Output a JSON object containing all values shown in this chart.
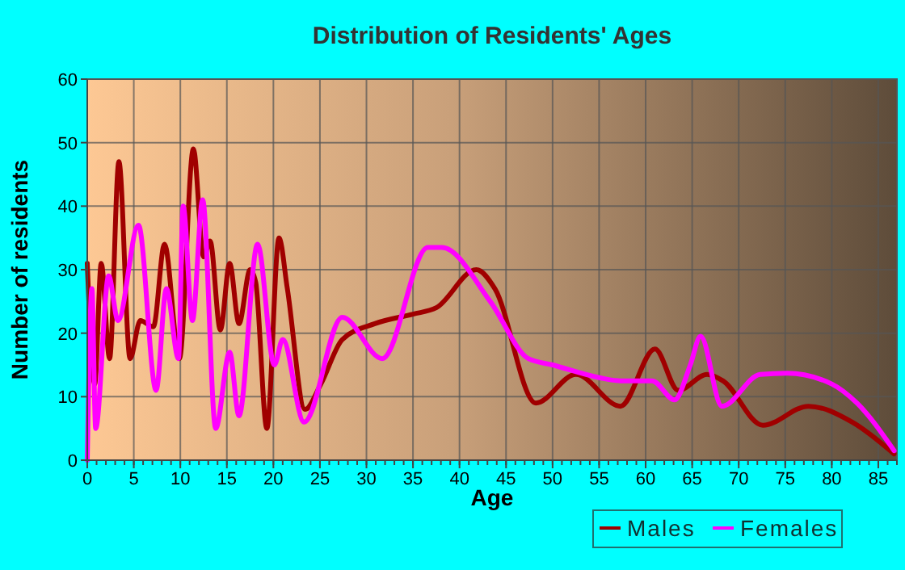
{
  "chart_data": {
    "type": "line",
    "title": "Distribution of Residents' Ages",
    "xlabel": "Age",
    "ylabel": "Number of residents",
    "xlim": [
      0,
      87
    ],
    "xticks": [
      0,
      5,
      10,
      15,
      20,
      25,
      30,
      35,
      40,
      45,
      50,
      55,
      60,
      65,
      70,
      75,
      80,
      85
    ],
    "ylim": [
      0,
      60
    ],
    "yticks": [
      0,
      10,
      20,
      30,
      40,
      50,
      60
    ],
    "grid": true,
    "legend": "bottom",
    "marker": "none",
    "line_style": "solid",
    "series": [
      {
        "name": "Males",
        "color": "#a00000",
        "x": [
          0,
          0.8,
          1.5,
          2.4,
          3.4,
          4.6,
          5.7,
          7.1,
          8.3,
          9.9,
          11.4,
          12.5,
          13.2,
          14.3,
          15.3,
          16.3,
          17.5,
          18.1,
          19.3,
          20.6,
          21.5,
          23.4,
          25.1,
          27.4,
          30.9,
          35,
          37.5,
          41.8,
          43.8,
          48.2,
          52.5,
          57.3,
          61,
          63.5,
          66.6,
          68.3,
          72.6,
          77.5,
          82.2,
          86.7
        ],
        "values": [
          31,
          12,
          31,
          16,
          47,
          16,
          22,
          21,
          34,
          16,
          49,
          32,
          34.5,
          20.5,
          31,
          21.5,
          30,
          28,
          5,
          35,
          27,
          8,
          12,
          19,
          21.5,
          23,
          24,
          30,
          27,
          9,
          13.5,
          8.5,
          17.5,
          11,
          13.5,
          12.5,
          5.5,
          8.5,
          6,
          1
        ]
      },
      {
        "name": "Females",
        "color": "#ff00ff",
        "x": [
          0,
          0.5,
          0.9,
          2.3,
          3.3,
          5.5,
          7.4,
          8.5,
          9.8,
          10.3,
          11.3,
          12.4,
          13.8,
          15.3,
          16.3,
          18.3,
          20.1,
          21,
          23.3,
          27.4,
          31.7,
          36.6,
          38.1,
          43.3,
          47.4,
          50,
          55,
          57.3,
          60.7,
          63.1,
          64.8,
          65.9,
          68.2,
          72.3,
          75.2,
          80,
          82.7,
          86.7
        ],
        "values": [
          0,
          27,
          5,
          29,
          22,
          37,
          11,
          27,
          16,
          40,
          22,
          41,
          5,
          17,
          7,
          34,
          15,
          19,
          6,
          22.5,
          16,
          33.5,
          33.5,
          25,
          16,
          15,
          13,
          12.5,
          12.5,
          9.5,
          15,
          19.5,
          8.5,
          13.5,
          13.7,
          12,
          9,
          1.5
        ]
      }
    ]
  }
}
